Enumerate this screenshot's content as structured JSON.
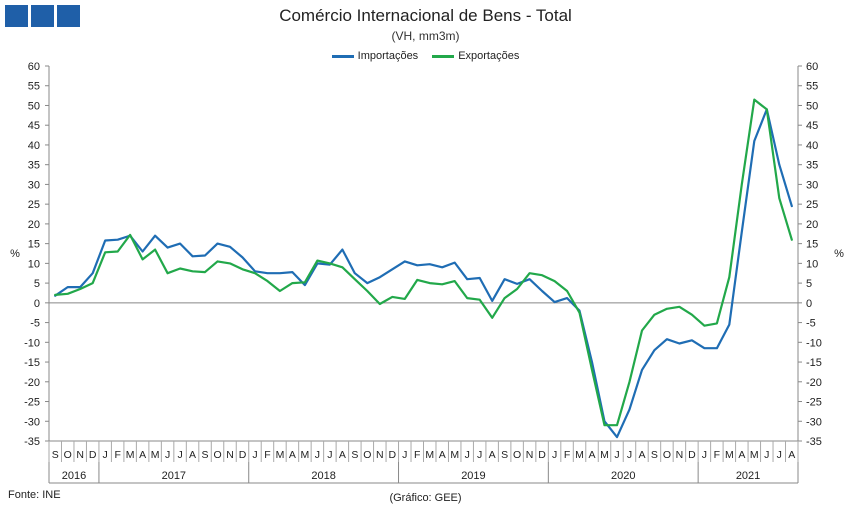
{
  "header": {
    "title": "Comércio Internacional de Bens - Total",
    "subtitle": "(VH, mm3m)"
  },
  "footer": {
    "source": "Fonte: INE",
    "note": "(Gráfico: GEE)"
  },
  "colors": {
    "logo": "#1f5fa8",
    "importacoes": "#1f6db4",
    "exportacoes": "#22a84a"
  },
  "chart_data": {
    "type": "line",
    "title": "Comércio Internacional de Bens - Total",
    "subtitle": "(VH, mm3m)",
    "ylabel_left": "%",
    "ylabel_right": "%",
    "ylim": [
      -35,
      60
    ],
    "yticks": [
      -35,
      -30,
      -25,
      -20,
      -15,
      -10,
      -5,
      0,
      5,
      10,
      15,
      20,
      25,
      30,
      35,
      40,
      45,
      50,
      55,
      60
    ],
    "grid": false,
    "legend_position": "top-center",
    "month_labels": [
      "S",
      "O",
      "N",
      "D",
      "J",
      "F",
      "M",
      "A",
      "M",
      "J",
      "J",
      "A",
      "S",
      "O",
      "N",
      "D",
      "J",
      "F",
      "M",
      "A",
      "M",
      "J",
      "J",
      "A",
      "S",
      "O",
      "N",
      "D",
      "J",
      "F",
      "M",
      "A",
      "M",
      "J",
      "J",
      "A",
      "S",
      "O",
      "N",
      "D",
      "J",
      "F",
      "M",
      "A",
      "M",
      "J",
      "J",
      "A",
      "S",
      "O",
      "N",
      "D",
      "J",
      "F",
      "M",
      "A",
      "M",
      "J",
      "J",
      "A"
    ],
    "years": [
      {
        "label": "2016",
        "start": 0,
        "count": 4
      },
      {
        "label": "2017",
        "start": 4,
        "count": 12
      },
      {
        "label": "2018",
        "start": 16,
        "count": 12
      },
      {
        "label": "2019",
        "start": 28,
        "count": 12
      },
      {
        "label": "2020",
        "start": 40,
        "count": 12
      },
      {
        "label": "2021",
        "start": 52,
        "count": 8
      }
    ],
    "series": [
      {
        "name": "Importações",
        "values": [
          1.8,
          4.0,
          4.0,
          7.5,
          15.8,
          16.0,
          17.0,
          13.0,
          17.0,
          14.0,
          15.0,
          11.8,
          12.0,
          15.0,
          14.2,
          11.5,
          8.0,
          7.5,
          7.5,
          7.8,
          4.5,
          10.0,
          9.7,
          13.5,
          7.5,
          5.0,
          6.5,
          8.5,
          10.5,
          9.5,
          9.8,
          9.0,
          10.2,
          6.0,
          6.3,
          0.5,
          6.0,
          4.8,
          6.0,
          3.0,
          0.2,
          1.2,
          -2.0,
          -15.0,
          -30.0,
          -34.0,
          -27.0,
          -17.0,
          -12.0,
          -9.2,
          -10.3,
          -9.5,
          -11.5,
          -11.5,
          -5.5,
          18.0,
          41.0,
          49.0,
          35.0,
          24.5
        ]
      },
      {
        "name": "Exportações",
        "values": [
          2.0,
          2.3,
          3.5,
          5.0,
          12.8,
          13.0,
          17.2,
          11.0,
          13.5,
          7.5,
          8.7,
          8.0,
          7.8,
          10.5,
          10.0,
          8.5,
          7.5,
          5.5,
          3.0,
          5.0,
          5.2,
          10.7,
          10.0,
          9.0,
          6.0,
          3.0,
          -0.3,
          1.5,
          1.0,
          5.8,
          5.0,
          4.7,
          5.5,
          1.2,
          0.8,
          -3.8,
          1.2,
          3.5,
          7.5,
          7.0,
          5.5,
          3.0,
          -2.5,
          -17.0,
          -31.0,
          -31.0,
          -20.0,
          -7.0,
          -3.0,
          -1.5,
          -1.0,
          -3.0,
          -5.8,
          -5.2,
          6.5,
          30.0,
          51.5,
          49.0,
          26.5,
          16.0
        ]
      }
    ]
  }
}
